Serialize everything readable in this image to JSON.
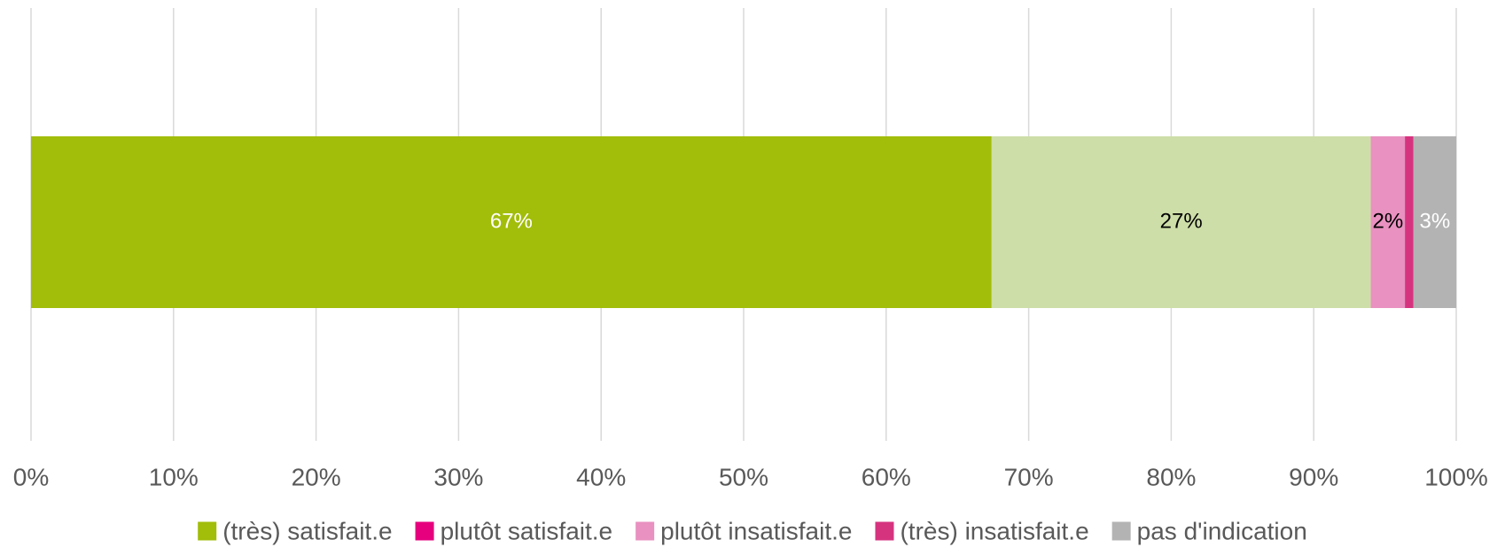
{
  "chart_data": {
    "type": "stacked_bar_horizontal",
    "categories": [
      null
    ],
    "series": [
      {
        "name": "(très) satisfait.e",
        "color": "#a2bd0a",
        "legend_color": "#a2bd0a",
        "label_color": "#ffffff",
        "values": [
          67.4
        ],
        "value_labels": [
          "67%"
        ]
      },
      {
        "name": "plutôt satisfait.e",
        "color": "#cddea8",
        "legend_color": "#e6007e",
        "label_color": "#000000",
        "values": [
          26.6
        ],
        "value_labels": [
          "27%"
        ]
      },
      {
        "name": "plutôt insatisfait.e",
        "color": "#e991c0",
        "legend_color": "#e991c0",
        "label_color": "#000000",
        "values": [
          2.4
        ],
        "value_labels": [
          "2%"
        ]
      },
      {
        "name": "(très) insatisfait.e",
        "color": "#d6337f",
        "legend_color": "#d6337f",
        "label_color": "#000000",
        "values": [
          0.6
        ]
      },
      {
        "name": "pas d'indication",
        "color": "#b3b3b3",
        "legend_color": "#b3b3b3",
        "label_color": "#ffffff",
        "values": [
          3.0
        ],
        "value_labels": [
          "3%"
        ]
      }
    ],
    "xlim": [
      0,
      100
    ],
    "xticks": [
      {
        "value": 0,
        "label": "0%"
      },
      {
        "value": 10,
        "label": "10%"
      },
      {
        "value": 20,
        "label": "20%"
      },
      {
        "value": 30,
        "label": "30%"
      },
      {
        "value": 40,
        "label": "40%"
      },
      {
        "value": 50,
        "label": "50%"
      },
      {
        "value": 60,
        "label": "60%"
      },
      {
        "value": 70,
        "label": "70%"
      },
      {
        "value": 80,
        "label": "80%"
      },
      {
        "value": 90,
        "label": "90%"
      },
      {
        "value": 100,
        "label": "100%"
      }
    ],
    "grid": true,
    "legend": "bottom"
  }
}
